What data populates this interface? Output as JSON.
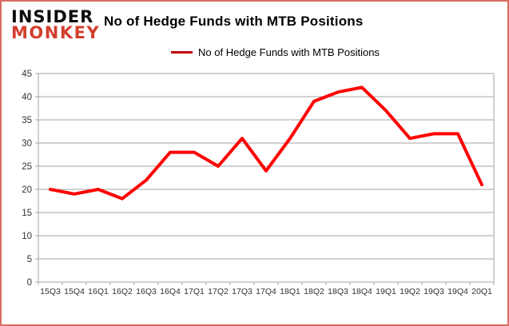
{
  "logo": {
    "line1": "INSIDER",
    "line2": "MONKEY"
  },
  "chart_data": {
    "type": "line",
    "title": "No of Hedge Funds with MTB Positions",
    "legend_label": "No of Hedge Funds with MTB Positions",
    "legend_position": "top",
    "grid": true,
    "xlabel": "",
    "ylabel": "",
    "categories": [
      "15Q3",
      "15Q4",
      "16Q1",
      "16Q2",
      "16Q3",
      "16Q4",
      "17Q1",
      "17Q2",
      "17Q3",
      "17Q4",
      "18Q1",
      "18Q2",
      "18Q3",
      "18Q4",
      "19Q1",
      "19Q2",
      "19Q3",
      "19Q4",
      "20Q1"
    ],
    "series": [
      {
        "name": "No of Hedge Funds with MTB Positions",
        "values": [
          20,
          19,
          20,
          18,
          22,
          28,
          28,
          25,
          31,
          24,
          31,
          39,
          41,
          42,
          37,
          31,
          32,
          32,
          21
        ]
      }
    ],
    "ylim": [
      0,
      45
    ],
    "y_ticks": [
      0,
      5,
      10,
      15,
      20,
      25,
      30,
      35,
      40,
      45
    ],
    "colors": {
      "line": "#fe0000",
      "legend_swatch": "#c00000",
      "grid": "#a6a6a6",
      "tick_text": "#333333",
      "logo_red": "#d23f2e",
      "border": "#d96c64"
    }
  }
}
